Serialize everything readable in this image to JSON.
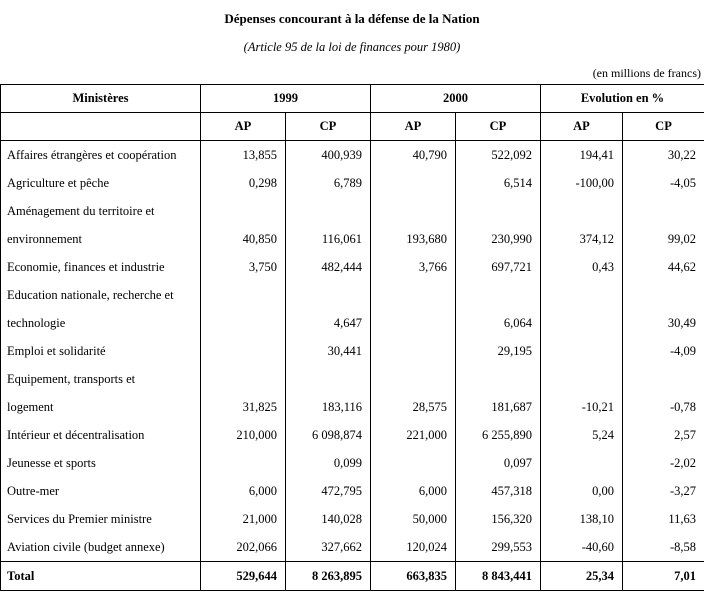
{
  "title": "Dépenses concourant à la défense de la Nation",
  "subtitle": "(Article 95 de la loi de finances pour 1980)",
  "unit_note": "(en millions de francs)",
  "table": {
    "col_header_main": [
      "Ministères",
      "1999",
      "2000",
      "Evolution en %"
    ],
    "sub_headers": [
      "AP",
      "CP",
      "AP",
      "CP",
      "AP",
      "CP"
    ],
    "rows": [
      {
        "label": "Affaires étrangères et coopération",
        "values": [
          "13,855",
          "400,939",
          "40,790",
          "522,092",
          "194,41",
          "30,22"
        ],
        "total": false
      },
      {
        "label": "Agriculture et pêche",
        "values": [
          "0,298",
          "6,789",
          "",
          "6,514",
          "-100,00",
          "-4,05"
        ],
        "total": false
      },
      {
        "label": "Aménagement du territoire et\nenvironnement",
        "values": [
          "40,850",
          "116,061",
          "193,680",
          "230,990",
          "374,12",
          "99,02"
        ],
        "total": false
      },
      {
        "label": "Economie, finances et industrie",
        "values": [
          "3,750",
          "482,444",
          "3,766",
          "697,721",
          "0,43",
          "44,62"
        ],
        "total": false
      },
      {
        "label": "Education nationale, recherche et\ntechnologie",
        "values": [
          "",
          "4,647",
          "",
          "6,064",
          "",
          "30,49"
        ],
        "total": false
      },
      {
        "label": "Emploi et solidarité",
        "values": [
          "",
          "30,441",
          "",
          "29,195",
          "",
          "-4,09"
        ],
        "total": false
      },
      {
        "label": "Equipement, transports et\nlogement",
        "values": [
          "31,825",
          "183,116",
          "28,575",
          "181,687",
          "-10,21",
          "-0,78"
        ],
        "total": false
      },
      {
        "label": "Intérieur et décentralisation",
        "values": [
          "210,000",
          "6 098,874",
          "221,000",
          "6 255,890",
          "5,24",
          "2,57"
        ],
        "total": false
      },
      {
        "label": "Jeunesse et sports",
        "values": [
          "",
          "0,099",
          "",
          "0,097",
          "",
          "-2,02"
        ],
        "total": false
      },
      {
        "label": "Outre-mer",
        "values": [
          "6,000",
          "472,795",
          "6,000",
          "457,318",
          "0,00",
          "-3,27"
        ],
        "total": false
      },
      {
        "label": "Services du Premier ministre",
        "values": [
          "21,000",
          "140,028",
          "50,000",
          "156,320",
          "138,10",
          "11,63"
        ],
        "total": false
      },
      {
        "label": "Aviation civile (budget annexe)",
        "values": [
          "202,066",
          "327,662",
          "120,024",
          "299,553",
          "-40,60",
          "-8,58"
        ],
        "total": false
      },
      {
        "label": "Total",
        "values": [
          "529,644",
          "8 263,895",
          "663,835",
          "8 843,441",
          "25,34",
          "7,01"
        ],
        "total": true
      }
    ]
  }
}
